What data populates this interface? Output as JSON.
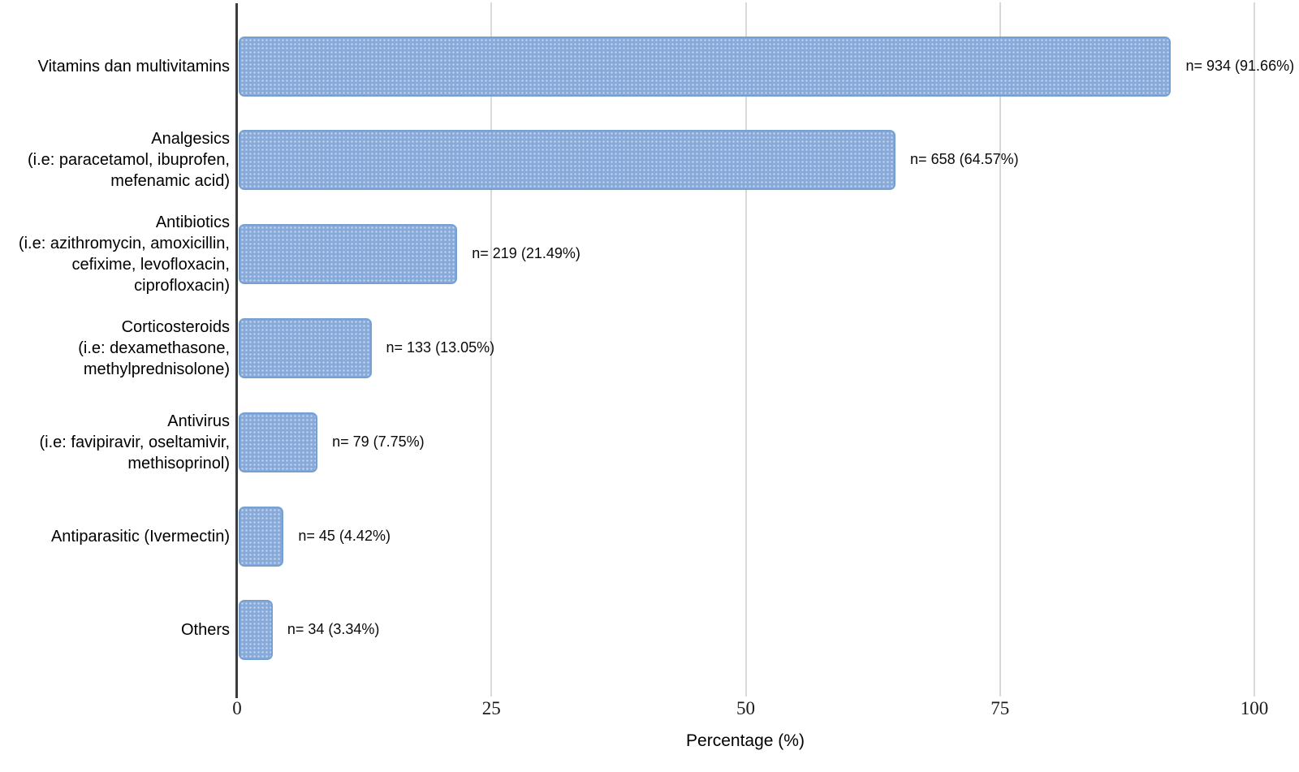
{
  "chart_data": {
    "type": "bar",
    "orientation": "horizontal",
    "title": "",
    "xlabel": "Percentage (%)",
    "xlim": [
      0,
      100
    ],
    "xticks": [
      0,
      25,
      50,
      75,
      100
    ],
    "grid": "vertical-light-gray",
    "legend": "none",
    "bar_color": "#88aada",
    "bar_border_color": "#74a0d2",
    "gridline_color": "#d9d9d9",
    "axis_color": "#3b3b3b",
    "categories": [
      "Vitamins dan multivitamins",
      "Analgesics\n(i.e: paracetamol, ibuprofen,\nmefenamic acid)",
      "Antibiotics\n(i.e: azithromycin, amoxicillin,\ncefixime, levofloxacin,\nciprofloxacin)",
      "Corticosteroids\n(i.e: dexamethasone,\nmethylprednisolone)",
      "Antivirus\n(i.e: favipiravir, oseltamivir,\nmethisoprinol)",
      "Antiparasitic (Ivermectin)",
      "Others"
    ],
    "values": [
      91.66,
      64.57,
      21.49,
      13.05,
      7.75,
      4.42,
      3.34
    ],
    "counts": [
      934,
      658,
      219,
      133,
      79,
      45,
      34
    ],
    "bar_labels": [
      "n= 934 (91.66%)",
      "n= 658 (64.57%)",
      "n= 219 (21.49%)",
      "n= 133 (13.05%)",
      "n= 79 (7.75%)",
      "n= 45 (4.42%)",
      "n= 34 (3.34%)"
    ]
  }
}
